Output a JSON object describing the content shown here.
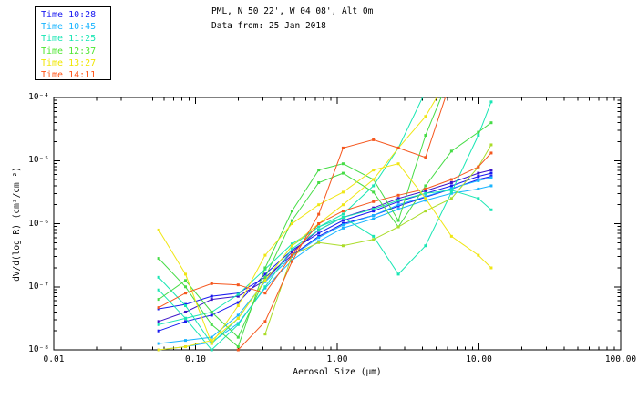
{
  "header": {
    "title_line1": "PML, N 50 22', W 04 08', Alt 0m",
    "title_line2": "Data from: 25 Jan 2018"
  },
  "legend": {
    "position": "top-left",
    "items": [
      {
        "label": "Time 10:28",
        "color": "#1919f0"
      },
      {
        "label": "Time 10:45",
        "color": "#19b4ff"
      },
      {
        "label": "Time 11:25",
        "color": "#19e6b4"
      },
      {
        "label": "Time 12:37",
        "color": "#50e632"
      },
      {
        "label": "Time 13:27",
        "color": "#f0e600"
      },
      {
        "label": "Time 14:11",
        "color": "#ff5519"
      }
    ]
  },
  "chart_data": {
    "type": "line",
    "title": "PML, N 50 22', W 04 08', Alt 0m",
    "subtitle": "Data from: 25 Jan 2018",
    "xlabel": "Aerosol Size (μm)",
    "ylabel": "dV/d(log R) (cm³/cm⁻²)",
    "x_scale": "log",
    "y_scale": "log",
    "xlim": [
      0.01,
      100.0
    ],
    "ylim": [
      1e-08,
      0.0001
    ],
    "x_tick_labels": [
      "0.01",
      "0.10",
      "1.00",
      "10.00",
      "100.00"
    ],
    "x_tick_values": [
      0.01,
      0.1,
      1.0,
      10.0,
      100.0
    ],
    "y_tick_labels": [
      "10⁻⁴",
      "10⁻⁵",
      "10⁻⁶",
      "10⁻⁷",
      "10⁻⁸"
    ],
    "y_tick_exponents": [
      -4,
      -5,
      -6,
      -7,
      -8
    ],
    "grid": false,
    "marker": "square",
    "x_um": [
      0.055,
      0.085,
      0.13,
      0.2,
      0.31,
      0.48,
      0.74,
      1.1,
      1.8,
      2.7,
      4.2,
      6.4,
      9.9,
      12.2
    ],
    "series": [
      {
        "name": "Time 10:28 scan a",
        "time": "10:28",
        "color": "#1919f0",
        "log10_values": [
          -7.7,
          -7.55,
          -7.45,
          -7.25,
          -6.8,
          -6.42,
          -6.15,
          -5.95,
          -5.8,
          -5.65,
          -5.52,
          -5.4,
          -5.25,
          -5.2
        ]
      },
      {
        "name": "Time 10:28 scan b",
        "time": "10:28",
        "color": "#1919f0",
        "log10_values": [
          -7.35,
          -7.28,
          -7.15,
          -7.1,
          -6.85,
          -6.5,
          -6.2,
          -6.0,
          -5.87,
          -5.72,
          -5.58,
          -5.45,
          -5.3,
          -5.25
        ]
      },
      {
        "name": "Time 10:28 scan c",
        "time": "10:28",
        "color": "#3c14c8",
        "log10_values": [
          -7.55,
          -7.4,
          -7.2,
          -7.15,
          -6.9,
          -6.45,
          -6.1,
          -5.9,
          -5.75,
          -5.6,
          -5.48,
          -5.35,
          -5.2,
          -5.15
        ]
      },
      {
        "name": "Time 10:45 scan a",
        "time": "10:45",
        "color": "#19b4ff",
        "log10_values": [
          -7.9,
          -7.85,
          -7.8,
          -7.45,
          -6.92,
          -6.52,
          -6.22,
          -6.02,
          -5.87,
          -5.7,
          -5.57,
          -5.44,
          -5.32,
          -5.27
        ]
      },
      {
        "name": "Time 10:45 scan b",
        "time": "10:45",
        "color": "#19b4ff",
        "log10_values": [
          -8.0,
          -7.95,
          -7.88,
          -7.58,
          -7.02,
          -6.58,
          -6.28,
          -6.07,
          -5.92,
          -5.77,
          -5.63,
          -5.52,
          -5.45,
          -5.4
        ]
      },
      {
        "name": "Time 11:25 scan a",
        "time": "11:25",
        "color": "#19e6b4",
        "log10_values": [
          -7.05,
          -7.5,
          -8.0,
          -7.6,
          -7.0,
          -6.4,
          -6.1,
          -5.9,
          -6.2,
          -6.8,
          -6.35,
          -5.5,
          -4.6,
          -4.07
        ]
      },
      {
        "name": "Time 11:25 scan b",
        "time": "11:25",
        "color": "#19e6b4",
        "log10_values": [
          -7.6,
          -7.5,
          -7.4,
          -7.12,
          -6.72,
          -6.32,
          -6.05,
          -5.9,
          -5.77,
          -5.63,
          -5.52,
          -5.47,
          -5.6,
          -5.78
        ]
      },
      {
        "name": "Time 11:25 scan c",
        "time": "11:25",
        "color": "#19e6b4",
        "log10_values": [
          -6.85,
          -7.3,
          -7.9,
          -7.5,
          -6.9,
          -6.35,
          -6.05,
          -5.85,
          -5.4,
          -4.8,
          -3.9,
          null,
          null,
          null
        ]
      },
      {
        "name": "Time 12:37 scan a",
        "time": "12:37",
        "color": "#46dc46",
        "log10_values": [
          -6.55,
          -7.0,
          -7.6,
          -7.95,
          -6.7,
          -5.8,
          -5.15,
          -5.05,
          -5.3,
          -5.95,
          -4.6,
          -3.6,
          null,
          null
        ]
      },
      {
        "name": "Time 12:37 scan b",
        "time": "12:37",
        "color": "#46dc46",
        "log10_values": [
          -7.2,
          -6.9,
          -7.4,
          -7.8,
          -6.85,
          -5.95,
          -5.35,
          -5.2,
          -5.5,
          -6.05,
          -5.4,
          -4.85,
          -4.55,
          -4.4
        ]
      },
      {
        "name": "Time 12:37 scan c",
        "time": "12:37",
        "color": "#aadc28",
        "log10_values": [
          null,
          null,
          null,
          null,
          -7.75,
          -6.5,
          -6.3,
          -6.35,
          -6.25,
          -6.05,
          -5.8,
          -5.6,
          -5.1,
          -4.75
        ]
      },
      {
        "name": "Time 13:27 scan a",
        "time": "13:27",
        "color": "#f0e614",
        "log10_values": [
          -6.1,
          -6.8,
          -7.9,
          -7.3,
          -6.5,
          -6.0,
          -5.7,
          -5.5,
          -5.15,
          -5.05,
          -5.6,
          -6.2,
          -6.5,
          -6.7
        ]
      },
      {
        "name": "Time 13:27 scan b",
        "time": "13:27",
        "color": "#f0e614",
        "log10_values": [
          -8.0,
          -7.95,
          -7.85,
          -7.5,
          -6.9,
          -6.35,
          -6.0,
          -5.7,
          -5.3,
          -4.8,
          -4.3,
          -3.6,
          null,
          null
        ]
      },
      {
        "name": "Time 14:11 scan a",
        "time": "14:11",
        "color": "#f5571e",
        "log10_values": [
          -7.33,
          -7.1,
          -6.95,
          -6.97,
          -7.1,
          -6.5,
          -6.0,
          -5.8,
          -5.65,
          -5.55,
          -5.45,
          -5.3,
          -5.1,
          -4.88
        ]
      },
      {
        "name": "Time 14:11 scan b",
        "time": "14:11",
        "color": "#f5571e",
        "log10_values": [
          null,
          null,
          null,
          -8.0,
          -7.55,
          -6.6,
          -5.85,
          -4.8,
          -4.67,
          -4.8,
          -4.95,
          -3.7,
          null,
          null
        ]
      }
    ]
  }
}
